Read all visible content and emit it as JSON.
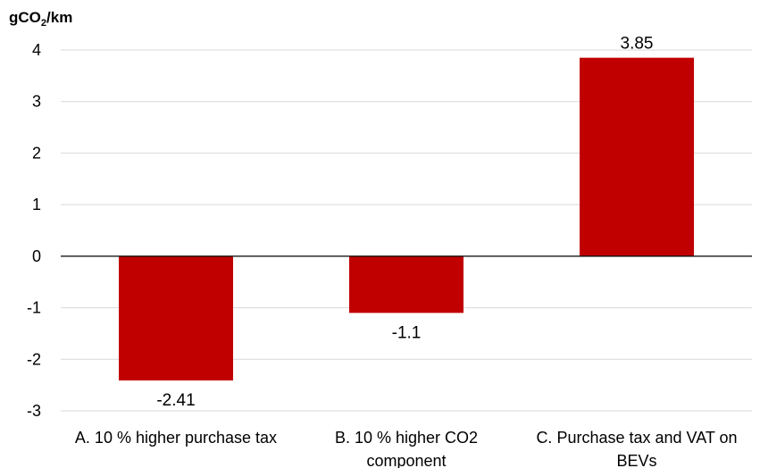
{
  "chart_data": {
    "type": "bar",
    "ylabel": {
      "main": "gCO",
      "sub": "2",
      "suffix": "/km"
    },
    "ylim": [
      -3,
      4
    ],
    "yticks": [
      "4",
      "3",
      "2",
      "1",
      "0",
      "-1",
      "-2",
      "-3"
    ],
    "grid": true,
    "categories": [
      [
        "A. 10 % higher purchase tax"
      ],
      [
        "B. 10 % higher CO2",
        "component"
      ],
      [
        "C. Purchase tax and VAT on",
        "BEVs"
      ]
    ],
    "values": [
      -2.41,
      -1.1,
      3.85
    ],
    "value_labels": [
      "-2.41",
      "-1.1",
      "3.85"
    ],
    "colors": {
      "bar": "#c00000"
    }
  }
}
